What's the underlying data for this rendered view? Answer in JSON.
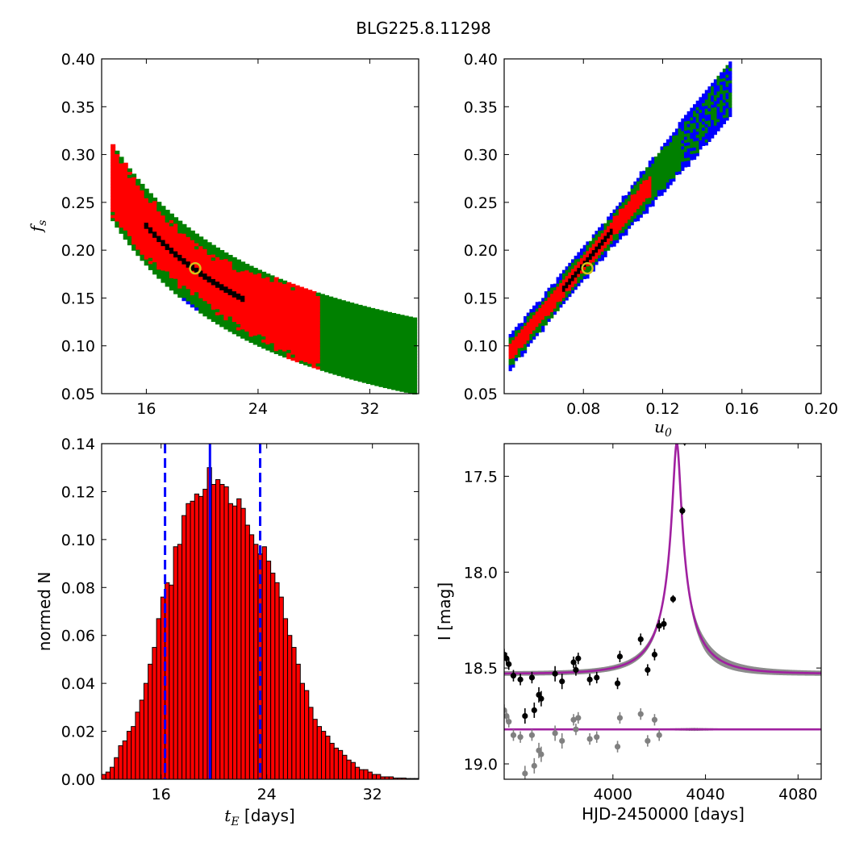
{
  "figure": {
    "title": "BLG225.8.11298"
  },
  "chart_data": [
    {
      "type": "heatmap",
      "panel": "top-left",
      "xlabel": "",
      "ylabel": "f_s",
      "xlim": [
        12.8,
        35.5
      ],
      "ylim": [
        0.05,
        0.4
      ],
      "xticks": [
        16,
        24,
        32
      ],
      "yticks": [
        0.05,
        0.1,
        0.15,
        0.2,
        0.25,
        0.3,
        0.35,
        0.4
      ],
      "xtick_labels": [
        "16",
        "24",
        "32"
      ],
      "ytick_labels": [
        "0.05",
        "0.10",
        "0.15",
        "0.20",
        "0.25",
        "0.30",
        "0.35",
        "0.40"
      ],
      "best_fit": {
        "x": 19.5,
        "y": 0.181
      },
      "levels": [
        "black",
        "red",
        "green",
        "blue"
      ],
      "level_colors": [
        "#000000",
        "#ff0000",
        "#008000",
        "#0000ff"
      ]
    },
    {
      "type": "heatmap",
      "panel": "top-right",
      "xlabel": "u_0",
      "ylabel": "",
      "xlim": [
        0.04,
        0.2
      ],
      "ylim": [
        0.05,
        0.4
      ],
      "xticks": [
        0.08,
        0.12,
        0.16,
        0.2
      ],
      "yticks": [
        0.05,
        0.1,
        0.15,
        0.2,
        0.25,
        0.3,
        0.35,
        0.4
      ],
      "xtick_labels": [
        "0.08",
        "0.12",
        "0.16",
        "0.20"
      ],
      "ytick_labels": [
        "0.05",
        "0.10",
        "0.15",
        "0.20",
        "0.25",
        "0.30",
        "0.35",
        "0.40"
      ],
      "best_fit": {
        "x": 0.082,
        "y": 0.181
      }
    },
    {
      "type": "bar",
      "panel": "bottom-left",
      "xlabel": "t_E  [days]",
      "ylabel": "normed N",
      "xlim": [
        11.5,
        35.5
      ],
      "ylim": [
        0,
        0.14
      ],
      "xticks": [
        16,
        24,
        32
      ],
      "yticks": [
        0.0,
        0.02,
        0.04,
        0.06,
        0.08,
        0.1,
        0.12,
        0.14
      ],
      "xtick_labels": [
        "16",
        "24",
        "32"
      ],
      "ytick_labels": [
        "0.00",
        "0.02",
        "0.04",
        "0.06",
        "0.08",
        "0.10",
        "0.12",
        "0.14"
      ],
      "bin_start": 11.5,
      "bin_width": 0.32,
      "values": [
        0.002,
        0.003,
        0.005,
        0.009,
        0.014,
        0.016,
        0.02,
        0.022,
        0.028,
        0.033,
        0.04,
        0.048,
        0.055,
        0.067,
        0.076,
        0.082,
        0.081,
        0.097,
        0.098,
        0.11,
        0.115,
        0.116,
        0.119,
        0.118,
        0.121,
        0.13,
        0.123,
        0.125,
        0.123,
        0.122,
        0.115,
        0.114,
        0.117,
        0.113,
        0.106,
        0.102,
        0.098,
        0.094,
        0.097,
        0.091,
        0.086,
        0.082,
        0.076,
        0.067,
        0.06,
        0.055,
        0.048,
        0.04,
        0.037,
        0.03,
        0.025,
        0.022,
        0.02,
        0.018,
        0.015,
        0.013,
        0.012,
        0.01,
        0.008,
        0.007,
        0.005,
        0.004,
        0.004,
        0.003,
        0.002,
        0.002,
        0.001,
        0.001,
        0.001,
        0.0005,
        0.0005,
        0.0005,
        0.0003,
        0.0003,
        0.0003
      ],
      "median_line": 19.7,
      "interval_lines": [
        16.3,
        23.5
      ]
    },
    {
      "type": "scatter",
      "panel": "bottom-right",
      "xlabel": "HJD-2450000 [days]",
      "ylabel": "I [mag]",
      "xlim": [
        3953,
        4090
      ],
      "ylim": [
        19.08,
        17.33
      ],
      "xticks": [
        4000,
        4040,
        4080
      ],
      "yticks": [
        17.5,
        18.0,
        18.5,
        19.0
      ],
      "xtick_labels": [
        "4000",
        "4040",
        "4080"
      ],
      "ytick_labels": [
        "17.5",
        "18.0",
        "18.5",
        "19.0"
      ],
      "model": {
        "t0": 4027.6,
        "u0": 0.082,
        "tE": 19.7,
        "baseline": 18.53,
        "fs": 0.181,
        "residual_baseline": 18.82
      },
      "series": [
        {
          "x": [
            3953,
            3954,
            3955,
            3957,
            3960,
            3962,
            3965,
            3966,
            3968,
            3969,
            3975,
            3978,
            3983,
            3984,
            3985,
            3990,
            3993,
            4002,
            4003,
            4012,
            4015,
            4018,
            4020,
            4022,
            4026,
            4030,
            4031
          ],
          "y": [
            18.43,
            18.45,
            18.48,
            18.54,
            18.56,
            18.75,
            18.55,
            18.72,
            18.64,
            18.66,
            18.53,
            18.57,
            18.47,
            18.51,
            18.45,
            18.56,
            18.55,
            18.58,
            18.44,
            18.35,
            18.51,
            18.43,
            18.28,
            18.27,
            18.14,
            17.68,
            17.32
          ],
          "err": [
            0.03,
            0.03,
            0.03,
            0.03,
            0.03,
            0.04,
            0.03,
            0.04,
            0.04,
            0.04,
            0.04,
            0.04,
            0.03,
            0.03,
            0.03,
            0.03,
            0.03,
            0.03,
            0.03,
            0.03,
            0.03,
            0.03,
            0.03,
            0.03,
            0.02,
            0.02,
            0.02
          ],
          "color": "#000000"
        },
        {
          "x": [
            3953,
            3954,
            3955,
            3957,
            3960,
            3962,
            3965,
            3966,
            3968,
            3969,
            3975,
            3978,
            3983,
            3984,
            3985,
            3990,
            3993,
            4002,
            4003,
            4012,
            4015,
            4018,
            4020
          ],
          "y": [
            18.72,
            18.75,
            18.78,
            18.85,
            18.86,
            19.05,
            18.85,
            19.01,
            18.93,
            18.95,
            18.84,
            18.88,
            18.77,
            18.82,
            18.76,
            18.87,
            18.86,
            18.91,
            18.76,
            18.74,
            18.88,
            18.77,
            18.85
          ],
          "err": [
            0.03,
            0.03,
            0.03,
            0.03,
            0.03,
            0.04,
            0.03,
            0.04,
            0.04,
            0.04,
            0.04,
            0.04,
            0.03,
            0.03,
            0.03,
            0.03,
            0.03,
            0.03,
            0.03,
            0.03,
            0.03,
            0.03,
            0.03
          ],
          "color": "#808080"
        }
      ],
      "model_color": "#a020a0",
      "band_color": "#808080"
    }
  ]
}
